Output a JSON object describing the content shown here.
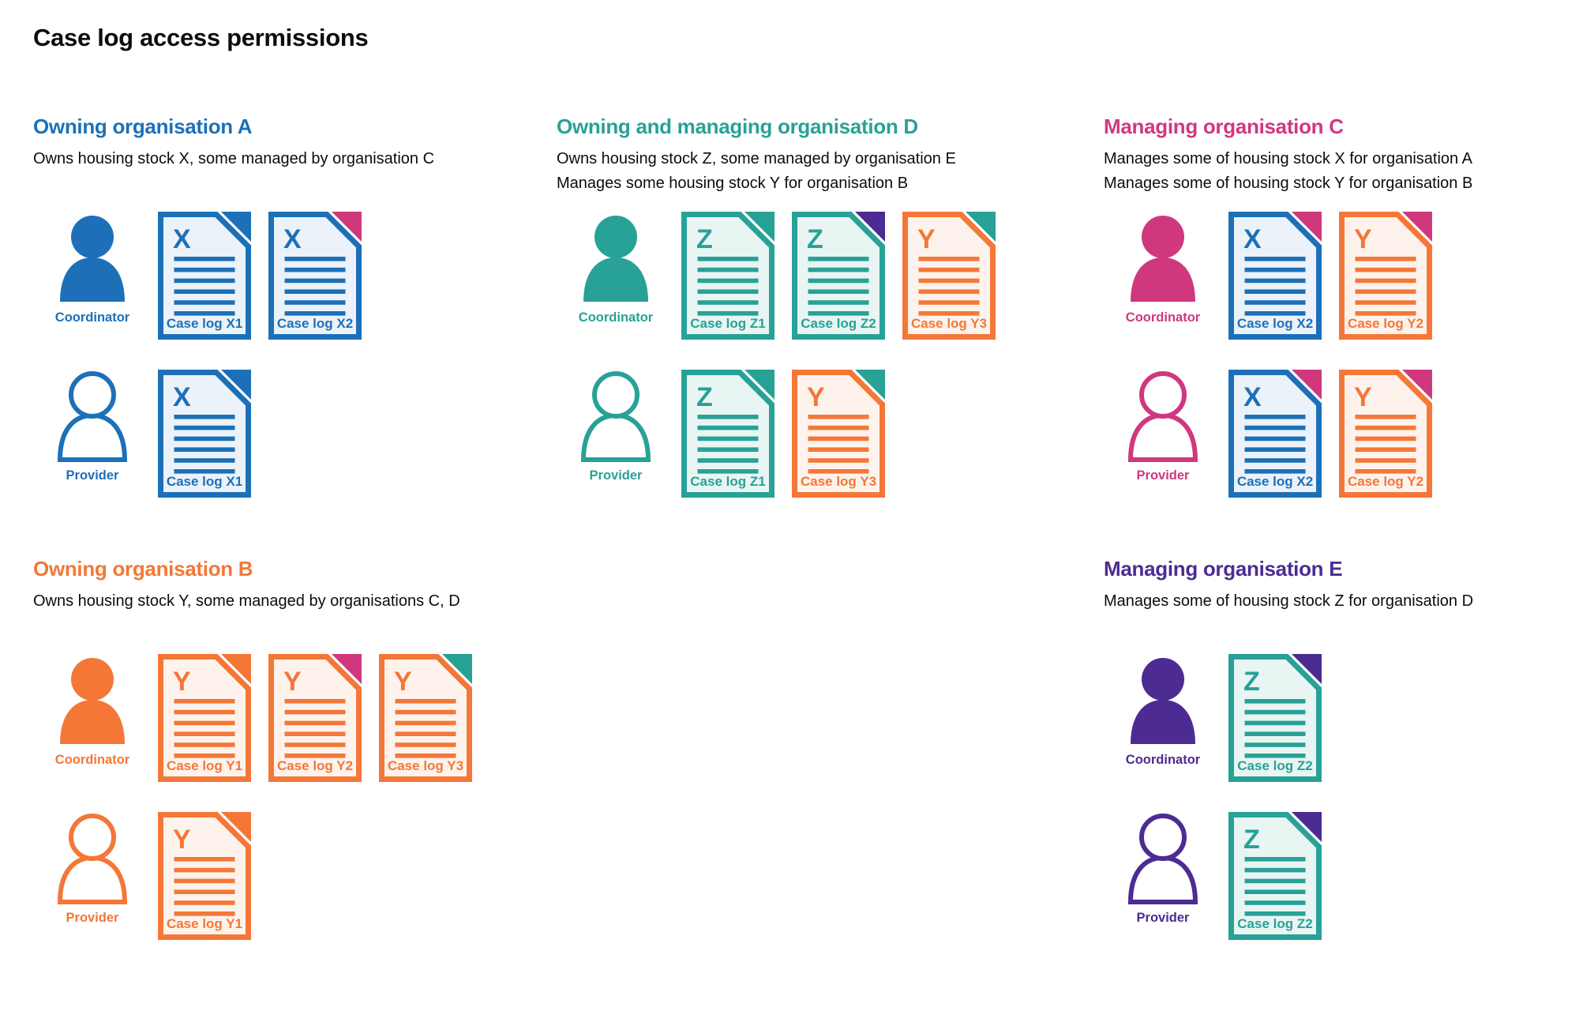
{
  "title": "Case log access permissions",
  "colors": {
    "blue": "#1d70b8",
    "teal": "#28a197",
    "pink": "#d0387e",
    "orange": "#f47738",
    "purple": "#4c2c92",
    "text": "#0b0c0c",
    "blue_tint": "#ebf2f9",
    "teal_tint": "#e9f5f3",
    "orange_tint": "#fdf3ec"
  },
  "organisations": [
    {
      "id": "A",
      "color": "blue",
      "name": "Owning organisation A",
      "description": [
        "Owns housing stock X, some managed by organisation C"
      ],
      "roles": [
        {
          "label": "Coordinator",
          "person": "filled",
          "docs": [
            {
              "letter": "X",
              "label": "Case log X1",
              "doc": "blue",
              "fold": "blue"
            },
            {
              "letter": "X",
              "label": "Case log X2",
              "doc": "blue",
              "fold": "pink"
            }
          ]
        },
        {
          "label": "Provider",
          "person": "outline",
          "docs": [
            {
              "letter": "X",
              "label": "Case log X1",
              "doc": "blue",
              "fold": "blue"
            }
          ]
        }
      ]
    },
    {
      "id": "D",
      "color": "teal",
      "name": "Owning and managing organisation D",
      "description": [
        "Owns housing stock Z, some managed by organisation E",
        "Manages some housing stock Y for organisation B"
      ],
      "roles": [
        {
          "label": "Coordinator",
          "person": "filled",
          "docs": [
            {
              "letter": "Z",
              "label": "Case log Z1",
              "doc": "teal",
              "fold": "teal"
            },
            {
              "letter": "Z",
              "label": "Case log Z2",
              "doc": "teal",
              "fold": "purple"
            },
            {
              "letter": "Y",
              "label": "Case log Y3",
              "doc": "orange",
              "fold": "teal"
            }
          ]
        },
        {
          "label": "Provider",
          "person": "outline",
          "docs": [
            {
              "letter": "Z",
              "label": "Case log Z1",
              "doc": "teal",
              "fold": "teal"
            },
            {
              "letter": "Y",
              "label": "Case log Y3",
              "doc": "orange",
              "fold": "teal"
            }
          ]
        }
      ]
    },
    {
      "id": "C",
      "color": "pink",
      "name": "Managing organisation C",
      "description": [
        "Manages some of housing stock X for organisation A",
        "Manages some of housing stock Y for organisation B"
      ],
      "roles": [
        {
          "label": "Coordinator",
          "person": "filled",
          "docs": [
            {
              "letter": "X",
              "label": "Case log X2",
              "doc": "blue",
              "fold": "pink"
            },
            {
              "letter": "Y",
              "label": "Case log Y2",
              "doc": "orange",
              "fold": "pink"
            }
          ]
        },
        {
          "label": "Provider",
          "person": "outline",
          "docs": [
            {
              "letter": "X",
              "label": "Case log X2",
              "doc": "blue",
              "fold": "pink"
            },
            {
              "letter": "Y",
              "label": "Case log Y2",
              "doc": "orange",
              "fold": "pink"
            }
          ]
        }
      ]
    },
    {
      "id": "B",
      "color": "orange",
      "name": "Owning organisation B",
      "description": [
        "Owns housing stock Y, some managed by organisations C, D"
      ],
      "roles": [
        {
          "label": "Coordinator",
          "person": "filled",
          "docs": [
            {
              "letter": "Y",
              "label": "Case log Y1",
              "doc": "orange",
              "fold": "orange"
            },
            {
              "letter": "Y",
              "label": "Case log Y2",
              "doc": "orange",
              "fold": "pink"
            },
            {
              "letter": "Y",
              "label": "Case log Y3",
              "doc": "orange",
              "fold": "teal"
            }
          ]
        },
        {
          "label": "Provider",
          "person": "outline",
          "docs": [
            {
              "letter": "Y",
              "label": "Case log Y1",
              "doc": "orange",
              "fold": "orange"
            }
          ]
        }
      ]
    },
    {
      "id": "E",
      "color": "purple",
      "name": "Managing organisation E",
      "description": [
        "Manages some of housing stock Z for organisation D"
      ],
      "roles": [
        {
          "label": "Coordinator",
          "person": "filled",
          "docs": [
            {
              "letter": "Z",
              "label": "Case log Z2",
              "doc": "teal",
              "fold": "purple"
            }
          ]
        },
        {
          "label": "Provider",
          "person": "outline",
          "docs": [
            {
              "letter": "Z",
              "label": "Case log Z2",
              "doc": "teal",
              "fold": "purple"
            }
          ]
        }
      ]
    }
  ]
}
